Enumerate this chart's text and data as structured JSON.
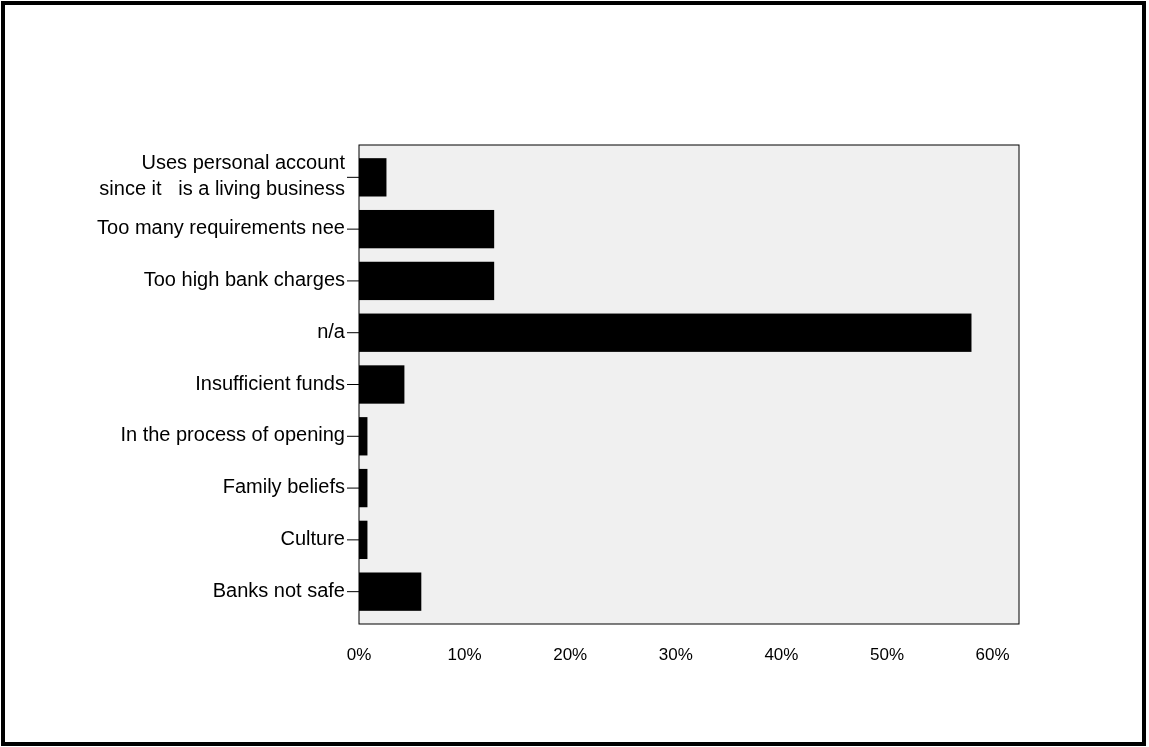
{
  "chart_data": {
    "type": "bar",
    "orientation": "horizontal",
    "categories": [
      "Uses personal account\nsince it   is a living business",
      "Too many requirements nee",
      "Too high bank charges",
      "n/a",
      "Insufficient funds",
      "In the process of opening",
      "Family beliefs",
      "Culture",
      "Banks not safe"
    ],
    "values": [
      2.6,
      12.8,
      12.8,
      58.0,
      4.3,
      0.8,
      0.8,
      0.8,
      5.9
    ],
    "color": "#000000",
    "xlim": [
      0,
      62.5
    ],
    "xticks": [
      {
        "value": 0,
        "label": "0%"
      },
      {
        "value": 10,
        "label": "10%"
      },
      {
        "value": 20,
        "label": "20%"
      },
      {
        "value": 30,
        "label": "30%"
      },
      {
        "value": 40,
        "label": "40%"
      },
      {
        "value": 50,
        "label": "50%"
      },
      {
        "value": 60,
        "label": "60%"
      }
    ],
    "grid": false
  }
}
